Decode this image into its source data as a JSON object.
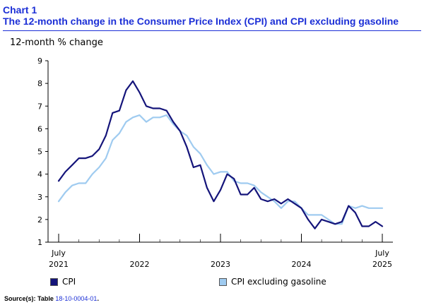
{
  "header": {
    "chart_number": "Chart 1",
    "title": "The 12-month change in the Consumer Price Index (CPI) and CPI excluding gasoline"
  },
  "source": {
    "label": "Source(s):",
    "prefix": "Table",
    "link_text": "18-10-0004-01",
    "suffix": "."
  },
  "colors": {
    "cpi": "#14147a",
    "cpi_ex_gas": "#9fcbf0",
    "title": "#1c2fd6"
  },
  "chart_data": {
    "type": "line",
    "ylabel": "12-month % change",
    "ylim": [
      1,
      9
    ],
    "yticks": [
      1,
      2,
      3,
      4,
      5,
      6,
      7,
      8,
      9
    ],
    "grid": false,
    "x_tick_labels": [
      {
        "month_index": 0,
        "lines": [
          "July",
          "2021"
        ]
      },
      {
        "month_index": 12,
        "lines": [
          "2022"
        ]
      },
      {
        "month_index": 24,
        "lines": [
          "2023"
        ]
      },
      {
        "month_index": 36,
        "lines": [
          "2024"
        ]
      },
      {
        "month_index": 48,
        "lines": [
          "July",
          "2025"
        ]
      }
    ],
    "x_range": [
      "2021-07",
      "2025-07"
    ],
    "legend_position": "bottom",
    "series": [
      {
        "name": "CPI",
        "color": "#14147a",
        "values": [
          3.7,
          4.1,
          4.4,
          4.7,
          4.7,
          4.8,
          5.1,
          5.7,
          6.7,
          6.8,
          7.7,
          8.1,
          7.6,
          7.0,
          6.9,
          6.9,
          6.8,
          6.3,
          5.9,
          5.2,
          4.3,
          4.4,
          3.4,
          2.8,
          3.3,
          4.0,
          3.8,
          3.1,
          3.1,
          3.4,
          2.9,
          2.8,
          2.9,
          2.7,
          2.9,
          2.7,
          2.5,
          2.0,
          1.6,
          2.0,
          1.9,
          1.8,
          1.9,
          2.6,
          2.3,
          1.7,
          1.7,
          1.9,
          1.7
        ]
      },
      {
        "name": "CPI excluding gasoline",
        "color": "#9fcbf0",
        "values": [
          2.8,
          3.2,
          3.5,
          3.6,
          3.6,
          4.0,
          4.3,
          4.7,
          5.5,
          5.8,
          6.3,
          6.5,
          6.6,
          6.3,
          6.5,
          6.5,
          6.6,
          6.2,
          5.9,
          5.7,
          5.2,
          4.9,
          4.4,
          4.0,
          4.1,
          4.1,
          3.7,
          3.6,
          3.6,
          3.5,
          3.2,
          3.0,
          2.8,
          2.5,
          2.8,
          2.8,
          2.5,
          2.2,
          2.2,
          2.2,
          2.0,
          1.8,
          1.8,
          2.6,
          2.5,
          2.6,
          2.5,
          2.5,
          2.5
        ]
      }
    ]
  }
}
